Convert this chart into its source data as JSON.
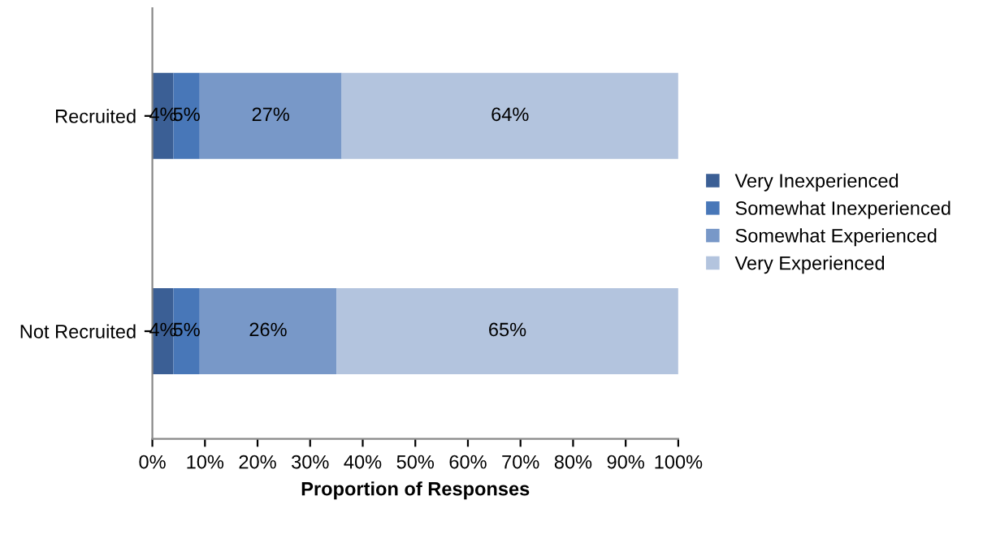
{
  "chart_data": {
    "type": "bar",
    "orientation": "horizontal",
    "stacked": true,
    "xlabel": "Proportion of Responses",
    "categories": [
      "Recruited",
      "Not Recruited"
    ],
    "series": [
      {
        "name": "Very Inexperienced",
        "color": "#3b5f95",
        "values": [
          4,
          4
        ],
        "value_labels": [
          "4%",
          "4%"
        ]
      },
      {
        "name": "Somewhat Inexperienced",
        "color": "#4877b8",
        "values": [
          5,
          5
        ],
        "value_labels": [
          "5%",
          "5%"
        ]
      },
      {
        "name": "Somewhat Experienced",
        "color": "#7898c8",
        "values": [
          27,
          26
        ],
        "value_labels": [
          "27%",
          "26%"
        ]
      },
      {
        "name": "Very Experienced",
        "color": "#b3c4de",
        "values": [
          64,
          65
        ],
        "value_labels": [
          "64%",
          "65%"
        ]
      }
    ],
    "xlim": [
      0,
      100
    ],
    "xticks": [
      {
        "value": 0,
        "label": "0%"
      },
      {
        "value": 10,
        "label": "10%"
      },
      {
        "value": 20,
        "label": "20%"
      },
      {
        "value": 30,
        "label": "30%"
      },
      {
        "value": 40,
        "label": "40%"
      },
      {
        "value": 50,
        "label": "50%"
      },
      {
        "value": 60,
        "label": "60%"
      },
      {
        "value": 70,
        "label": "70%"
      },
      {
        "value": 80,
        "label": "80%"
      },
      {
        "value": 90,
        "label": "90%"
      },
      {
        "value": 100,
        "label": "100%"
      }
    ],
    "legend": "right",
    "grid": false
  }
}
